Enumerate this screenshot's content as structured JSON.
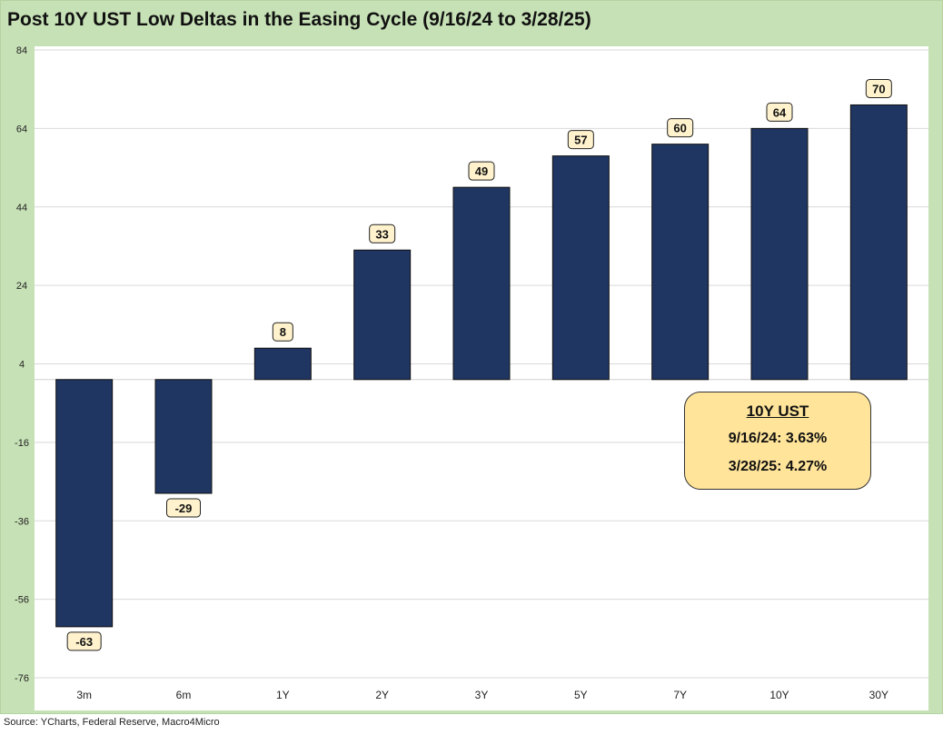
{
  "title": "Post 10Y UST Low Deltas in the Easing Cycle (9/16/24 to 3/28/25)",
  "source": "Source: YCharts, Federal Reserve, Macro4Micro",
  "info_box": {
    "header": "10Y UST",
    "line1": "9/16/24: 3.63%",
    "line2": "3/28/25: 4.27%"
  },
  "colors": {
    "bar": "#1f3562",
    "frame": "#c7e1b6",
    "label_fill": "#fff2cc",
    "info_fill": "#ffe49a",
    "grid": "#d9d9d9"
  },
  "chart_data": {
    "type": "bar",
    "title": "Post 10Y UST Low Deltas in the Easing Cycle (9/16/24 to 3/28/25)",
    "categories": [
      "3m",
      "6m",
      "1Y",
      "2Y",
      "3Y",
      "5Y",
      "7Y",
      "10Y",
      "30Y"
    ],
    "values": [
      -63,
      -29,
      8,
      33,
      49,
      57,
      60,
      64,
      70
    ],
    "data_labels": [
      "-63",
      "-29",
      "8",
      "33",
      "49",
      "57",
      "60",
      "64",
      "70"
    ],
    "ylim": [
      -76,
      84
    ],
    "yticks": [
      84,
      64,
      44,
      24,
      4,
      -16,
      -36,
      -56,
      -76
    ],
    "grid": true,
    "legend": "none"
  }
}
